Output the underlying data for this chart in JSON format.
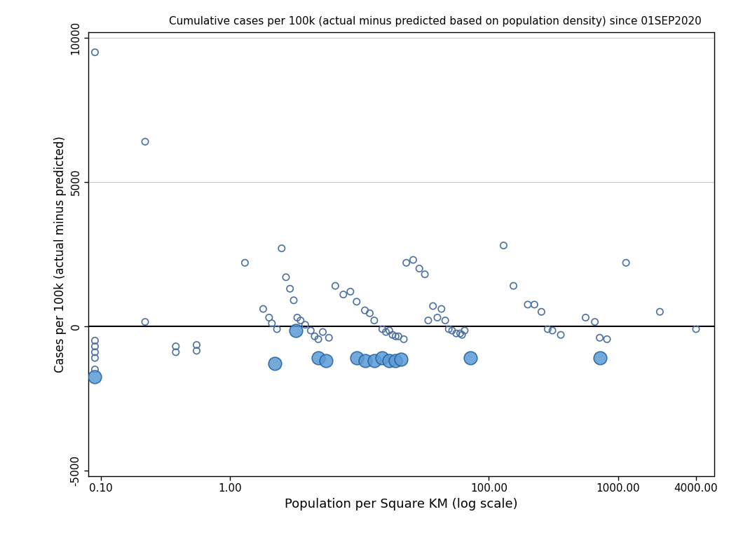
{
  "title": "Cumulative cases per 100k (actual minus predicted based on population density) since 01SEP2020",
  "xlabel": "Population per Square KM (log scale)",
  "ylabel": "Cases per 100k (actual minus predicted)",
  "xlim_log": [
    0.08,
    5500
  ],
  "ylim": [
    -5200,
    10200
  ],
  "yticks": [
    -5000,
    0,
    5000,
    10000
  ],
  "xtick_labels": [
    "0.10",
    "1.00",
    "100.00",
    "1000.00",
    "4000.00"
  ],
  "xtick_values": [
    0.1,
    1.0,
    100.0,
    1000.0,
    4000.0
  ],
  "background_color": "#ffffff",
  "grid_color": "#c8c8c8",
  "small_dot_color": "#4a6fa5",
  "large_dot_color": "#5b9bd5",
  "large_dot_edge": "#2060a0",
  "zero_line_color": "#000000",
  "small_points": [
    [
      0.09,
      9500
    ],
    [
      0.09,
      -500
    ],
    [
      0.09,
      -700
    ],
    [
      0.09,
      -900
    ],
    [
      0.09,
      -1100
    ],
    [
      0.09,
      -1500
    ],
    [
      0.22,
      6400
    ],
    [
      0.22,
      150
    ],
    [
      0.38,
      -700
    ],
    [
      0.38,
      -900
    ],
    [
      0.55,
      -650
    ],
    [
      0.55,
      -850
    ],
    [
      1.3,
      2200
    ],
    [
      1.8,
      600
    ],
    [
      2.0,
      300
    ],
    [
      2.1,
      100
    ],
    [
      2.3,
      -100
    ],
    [
      2.5,
      2700
    ],
    [
      2.7,
      1700
    ],
    [
      2.9,
      1300
    ],
    [
      3.1,
      900
    ],
    [
      3.3,
      300
    ],
    [
      3.5,
      200
    ],
    [
      3.8,
      50
    ],
    [
      4.2,
      -150
    ],
    [
      4.5,
      -350
    ],
    [
      4.8,
      -450
    ],
    [
      5.2,
      -200
    ],
    [
      5.8,
      -400
    ],
    [
      6.5,
      1400
    ],
    [
      7.5,
      1100
    ],
    [
      8.5,
      1200
    ],
    [
      9.5,
      850
    ],
    [
      11,
      550
    ],
    [
      12,
      450
    ],
    [
      13,
      200
    ],
    [
      15,
      -100
    ],
    [
      16,
      -200
    ],
    [
      17,
      -150
    ],
    [
      18,
      -300
    ],
    [
      19,
      -350
    ],
    [
      20,
      -350
    ],
    [
      22,
      -450
    ],
    [
      23,
      2200
    ],
    [
      26,
      2300
    ],
    [
      29,
      2000
    ],
    [
      32,
      1800
    ],
    [
      34,
      200
    ],
    [
      37,
      700
    ],
    [
      40,
      300
    ],
    [
      43,
      600
    ],
    [
      46,
      200
    ],
    [
      49,
      -100
    ],
    [
      52,
      -150
    ],
    [
      56,
      -250
    ],
    [
      60,
      -250
    ],
    [
      62,
      -300
    ],
    [
      65,
      -150
    ],
    [
      130,
      2800
    ],
    [
      155,
      1400
    ],
    [
      200,
      750
    ],
    [
      225,
      750
    ],
    [
      255,
      500
    ],
    [
      285,
      -100
    ],
    [
      310,
      -150
    ],
    [
      360,
      -300
    ],
    [
      560,
      300
    ],
    [
      660,
      150
    ],
    [
      720,
      -400
    ],
    [
      820,
      -450
    ],
    [
      1150,
      2200
    ],
    [
      2100,
      500
    ],
    [
      4000,
      -100
    ]
  ],
  "large_points": [
    [
      0.09,
      -1750
    ],
    [
      2.2,
      -1300
    ],
    [
      3.2,
      -150
    ],
    [
      4.8,
      -1100
    ],
    [
      5.5,
      -1200
    ],
    [
      9.5,
      -1100
    ],
    [
      11,
      -1200
    ],
    [
      13,
      -1200
    ],
    [
      15,
      -1100
    ],
    [
      17,
      -1200
    ],
    [
      19,
      -1200
    ],
    [
      21,
      -1150
    ],
    [
      72,
      -1100
    ],
    [
      720,
      -1100
    ]
  ]
}
